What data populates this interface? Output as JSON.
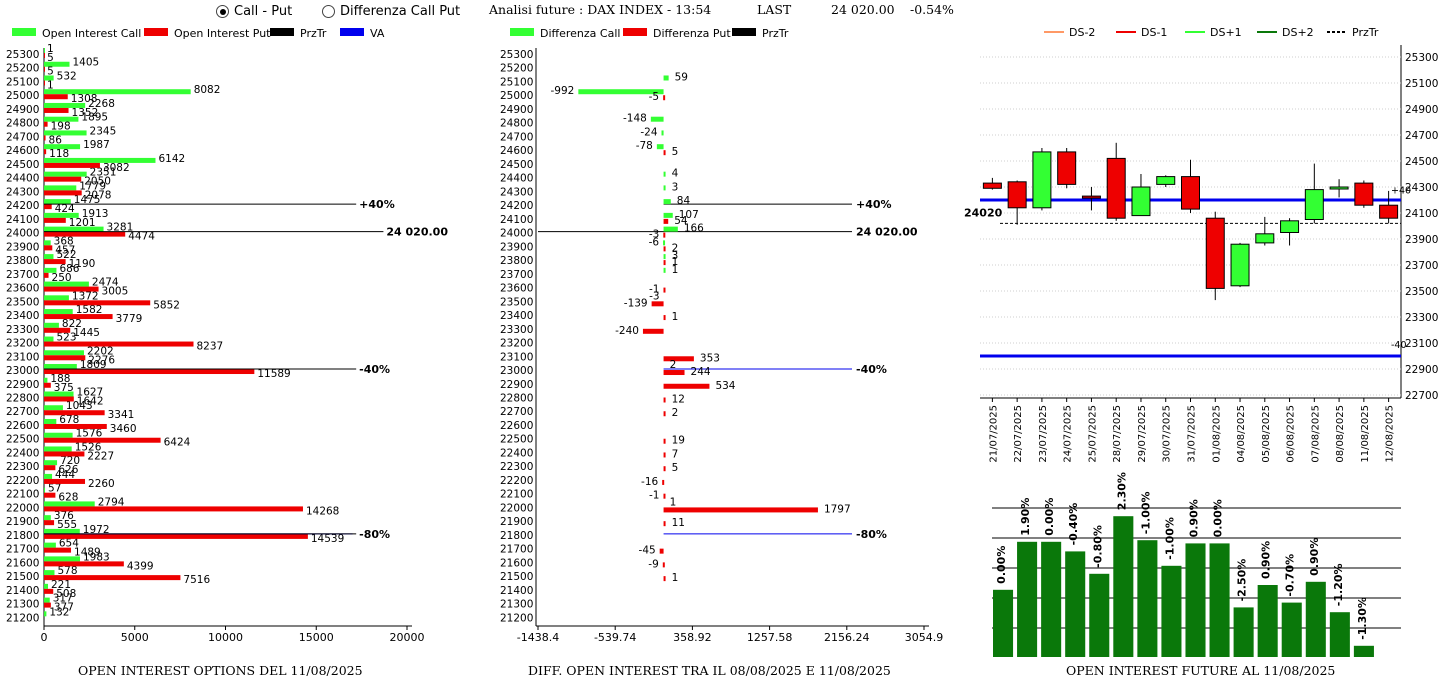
{
  "controls": {
    "radio_call_put": "Call - Put",
    "radio_diff": "Differenza Call Put",
    "selected": "call_put"
  },
  "header": {
    "title": "Analisi future : DAX INDEX - 13:54",
    "last_label": "LAST",
    "last_value": "24 020.00",
    "change": "-0.54%"
  },
  "colors": {
    "call": "#33ff33",
    "put": "#ee0000",
    "przTr": "#000000",
    "va": "#0000ee",
    "bar_dark": "#0a780a"
  },
  "strikes": [
    "25300",
    "25200",
    "25100",
    "25000",
    "24900",
    "24800",
    "24700",
    "24600",
    "24500",
    "24400",
    "24300",
    "24200",
    "24100",
    "24000",
    "23900",
    "23800",
    "23700",
    "23600",
    "23500",
    "23400",
    "23300",
    "23200",
    "23100",
    "23000",
    "22900",
    "22800",
    "22700",
    "22600",
    "22500",
    "22400",
    "22300",
    "22200",
    "22100",
    "22000",
    "21900",
    "21800",
    "21700",
    "21600",
    "21500",
    "21400",
    "21300",
    "21200"
  ],
  "chart_data": [
    {
      "type": "bar",
      "orientation": "horizontal",
      "legend": [
        "Open Interest Call",
        "Open Interest Put",
        "PrzTr",
        "VA"
      ],
      "x_ticks": [
        "0",
        "5000",
        "10000",
        "15000",
        "20000"
      ],
      "xlim": [
        0,
        20000
      ],
      "series": [
        {
          "name": "Open Interest Call",
          "values": [
            1,
            1405,
            532,
            8082,
            2268,
            1895,
            2345,
            1987,
            6142,
            2351,
            1779,
            1475,
            1913,
            3281,
            368,
            522,
            686,
            2474,
            1372,
            1582,
            822,
            523,
            2202,
            1809,
            188,
            1627,
            1043,
            678,
            1576,
            1526,
            720,
            444,
            57,
            2794,
            376,
            1972,
            654,
            1983,
            578,
            221,
            317,
            132
          ]
        },
        {
          "name": "Open Interest Put",
          "values": [
            5,
            5,
            1,
            1308,
            1352,
            198,
            86,
            118,
            3082,
            2050,
            2078,
            424,
            1201,
            4474,
            457,
            1190,
            250,
            3005,
            5852,
            3779,
            1445,
            8237,
            2276,
            11589,
            375,
            1642,
            3341,
            3460,
            6424,
            2227,
            626,
            2260,
            628,
            14268,
            555,
            14539,
            1489,
            4399,
            7516,
            508,
            377,
            0
          ]
        }
      ],
      "prz_lines": [
        {
          "label": "+40%",
          "strike": "24200",
          "x": 17200
        },
        {
          "label": "24 020.00",
          "strike": "24000",
          "x": 18700
        },
        {
          "label": "-40%",
          "strike": "23000",
          "x": 17200
        },
        {
          "label": "-80%",
          "strike": "21800",
          "x": 17200
        }
      ],
      "va_lines": [
        {
          "strike": "23000"
        },
        {
          "strike": "21800"
        }
      ],
      "footer": "OPEN INTEREST OPTIONS DEL 11/08/2025"
    },
    {
      "type": "bar",
      "orientation": "horizontal",
      "legend": [
        "Differenza Call",
        "Differenza Put",
        "PrzTr"
      ],
      "x_ticks": [
        "-1438.4",
        "-539.74",
        "358.92",
        "1257.58",
        "2156.24",
        "3054.9"
      ],
      "xlim": [
        -1438.4,
        3054.9
      ],
      "series": [
        {
          "name": "Differenza Call",
          "values": {
            "25100": 59,
            "25000": -992,
            "24800": -148,
            "24700": -24,
            "24600": -78,
            "24400": 4,
            "24300": 3,
            "24200": 84,
            "24100": 107,
            "24000": 166,
            "23900": -6,
            "23800": 3,
            "23700": 1
          }
        },
        {
          "name": "Differenza Put",
          "values": {
            "25000": -5,
            "24600": 5,
            "24100": 54,
            "24000": -3,
            "23900": 2,
            "23800": 1,
            "23600": -1,
            "23500": -139,
            "23400": 1,
            "23300": -240,
            "23100": 353,
            "23000": 244,
            "22900": 534,
            "22800": 12,
            "22700": 2,
            "22500": 19,
            "22400": 7,
            "22300": 5,
            "22200": -16,
            "22100": -1,
            "22000": 1797,
            "21900": 11,
            "21700": -45,
            "21600": -9,
            "21500": 1
          }
        },
        {
          "name": "Extra labels",
          "values": {
            "23500": -3,
            "23000": 2,
            "22000": 1
          }
        }
      ],
      "prz_lines": [
        {
          "label": "+40%",
          "strike": "24200"
        },
        {
          "label": "24 020.00",
          "strike": "24000"
        },
        {
          "label": "-40%",
          "strike": "23000"
        },
        {
          "label": "-80%",
          "strike": "21800"
        }
      ],
      "footer": "DIFF. OPEN INTEREST TRA IL 08/08/2025 E 11/08/2025"
    },
    {
      "type": "candlestick",
      "legend": [
        "DS-2",
        "DS-1",
        "DS+1",
        "DS+2",
        "PrzTr"
      ],
      "dates": [
        "21/07/2025",
        "22/07/2025",
        "23/07/2025",
        "24/07/2025",
        "25/07/2025",
        "28/07/2025",
        "29/07/2025",
        "30/07/2025",
        "31/07/2025",
        "01/08/2025",
        "04/08/2025",
        "05/08/2025",
        "06/08/2025",
        "07/08/2025",
        "08/08/2025",
        "11/08/2025",
        "12/08/2025"
      ],
      "ohlc": [
        [
          24330,
          24370,
          24280,
          24290
        ],
        [
          24340,
          24350,
          24010,
          24140
        ],
        [
          24140,
          24600,
          24120,
          24570
        ],
        [
          24570,
          24600,
          24290,
          24320
        ],
        [
          24230,
          24300,
          24120,
          24220
        ],
        [
          24520,
          24640,
          24040,
          24060
        ],
        [
          24080,
          24400,
          24080,
          24300
        ],
        [
          24320,
          24390,
          24300,
          24380
        ],
        [
          24380,
          24510,
          24100,
          24130
        ],
        [
          24060,
          24110,
          23430,
          23520
        ],
        [
          23540,
          23870,
          23530,
          23860
        ],
        [
          23870,
          24070,
          23850,
          23940
        ],
        [
          23950,
          24060,
          23850,
          24040
        ],
        [
          24050,
          24480,
          24020,
          24280
        ],
        [
          24290,
          24360,
          24220,
          24300
        ],
        [
          24330,
          24350,
          24140,
          24160
        ],
        [
          24160,
          24270,
          24020,
          24060
        ]
      ],
      "y_ticks": [
        "25300",
        "25100",
        "24900",
        "24700",
        "24500",
        "24300",
        "24100",
        "23900",
        "23700",
        "23500",
        "23300",
        "23100",
        "22900",
        "22700"
      ],
      "ylim": [
        22700,
        25300
      ],
      "blue_lines": [
        24200,
        23000
      ],
      "przTr": 24020,
      "przTr_label": "24020",
      "edge_labels": {
        "plus40": "+40",
        "minus40": "-40"
      }
    },
    {
      "type": "bar",
      "categories": [
        "21/07/2025",
        "22/07/2025",
        "23/07/2025",
        "24/07/2025",
        "25/07/2025",
        "28/07/2025",
        "29/07/2025",
        "30/07/2025",
        "31/07/2025",
        "01/08/2025",
        "04/08/2025",
        "05/08/2025",
        "06/08/2025",
        "07/08/2025",
        "08/08/2025",
        "11/08/2025",
        "12/08/2025"
      ],
      "values": [
        0.42,
        0.72,
        0.72,
        0.66,
        0.52,
        0.88,
        0.73,
        0.57,
        0.71,
        0.71,
        0.31,
        0.45,
        0.34,
        0.47,
        0.28,
        0.07,
        null
      ],
      "labels": [
        "0.00%",
        "1.90%",
        "0.00%",
        "-0.40%",
        "-0.80%",
        "2.30%",
        "-1.00%",
        "-1.00%",
        "0.90%",
        "0.00%",
        "-2.50%",
        "0.90%",
        "-0.70%",
        "0.90%",
        "-1.20%",
        "-1.30%",
        ""
      ],
      "footer": "OPEN INTEREST FUTURE AL 11/08/2025"
    }
  ]
}
